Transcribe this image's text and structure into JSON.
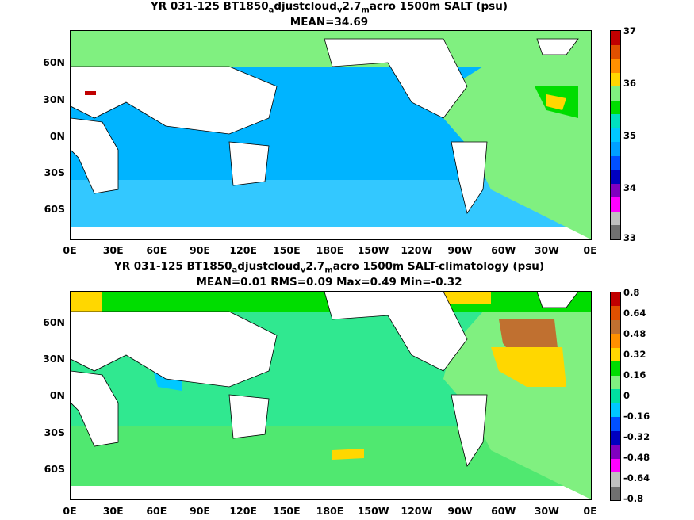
{
  "panel1": {
    "title_line1": [
      {
        "text": "YR 031-125 BT1850"
      },
      {
        "sub": "a"
      },
      {
        "text": "djustcloud"
      },
      {
        "sub": "v"
      },
      {
        "text": "2.7"
      },
      {
        "sub": "m"
      },
      {
        "text": "acro 1500m SALT (psu)"
      }
    ],
    "title_line2": "MEAN=34.69",
    "colorbar_labels": [
      "37",
      "36",
      "35",
      "34",
      "33"
    ],
    "colorbar_colors": [
      "#c00000",
      "#e05000",
      "#ff9000",
      "#ffd700",
      "#80f080",
      "#00dd00",
      "#00e0c0",
      "#00c8ff",
      "#00a0ff",
      "#0050ff",
      "#0000c0",
      "#8000c0",
      "#ff00ff",
      "#c0c0c0",
      "#707070"
    ],
    "ocean_color": "#00b4ff"
  },
  "panel2": {
    "title_line1": [
      {
        "text": "YR 031-125 BT1850"
      },
      {
        "sub": "a"
      },
      {
        "text": "djustcloud"
      },
      {
        "sub": "v"
      },
      {
        "text": "2.7"
      },
      {
        "sub": "m"
      },
      {
        "text": "acro 1500m SALT-climatology (psu)"
      }
    ],
    "title_line2": "MEAN=0.01   RMS=0.09   Max=0.49   Min=-0.32",
    "colorbar_labels": [
      "0.8",
      "0.64",
      "0.48",
      "0.32",
      "0.16",
      "0",
      "-0.16",
      "-0.32",
      "-0.48",
      "-0.64",
      "-0.8"
    ],
    "colorbar_colors": [
      "#c00000",
      "#e05000",
      "#c07030",
      "#ff9000",
      "#ffd700",
      "#00dd00",
      "#80f080",
      "#00e0a0",
      "#00c8ff",
      "#0050ff",
      "#0000c0",
      "#8000c0",
      "#ff00ff",
      "#c0c0c0",
      "#707070"
    ],
    "ocean_color": "#30e890"
  },
  "axes": {
    "lat_labels": [
      "60N",
      "30N",
      "0N",
      "30S",
      "60S"
    ],
    "lon_labels": [
      "0E",
      "30E",
      "60E",
      "90E",
      "120E",
      "150E",
      "180E",
      "150W",
      "120W",
      "90W",
      "60W",
      "30W",
      "0E"
    ]
  }
}
